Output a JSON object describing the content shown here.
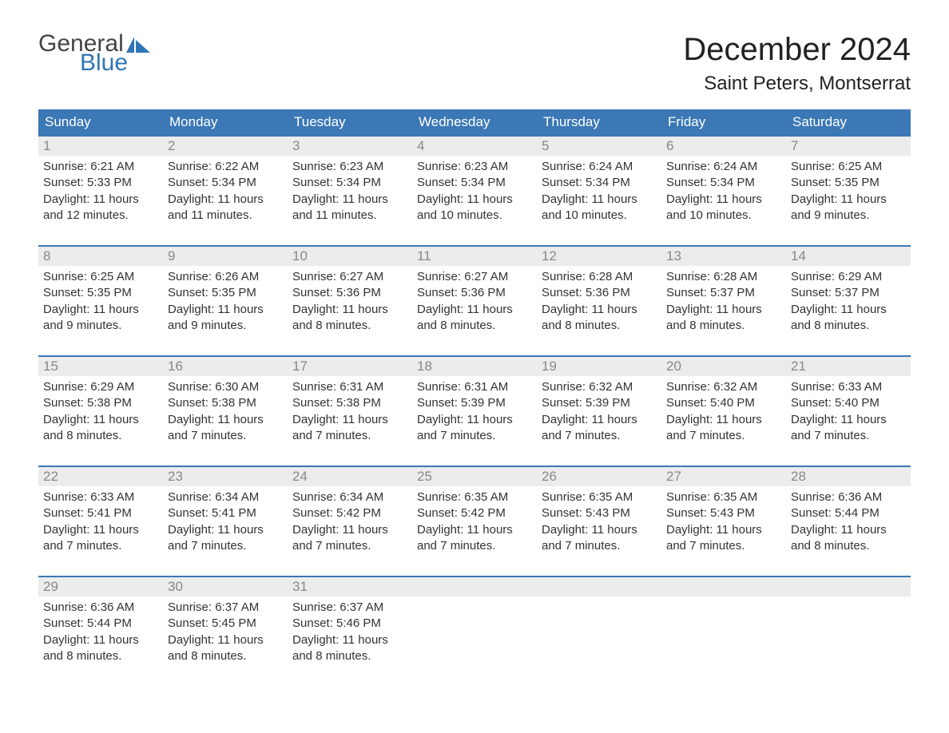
{
  "logo": {
    "general": "General",
    "blue": "Blue",
    "icon_color": "#2f75b5"
  },
  "title": "December 2024",
  "location": "Saint Peters, Montserrat",
  "colors": {
    "header_bg": "#3b78b5",
    "header_text": "#ffffff",
    "daynum_bg": "#ececec",
    "daynum_text": "#888888",
    "body_text": "#333333",
    "rule": "#3b78b5"
  },
  "weekdays": [
    "Sunday",
    "Monday",
    "Tuesday",
    "Wednesday",
    "Thursday",
    "Friday",
    "Saturday"
  ],
  "weeks": [
    [
      {
        "n": "1",
        "sunrise": "Sunrise: 6:21 AM",
        "sunset": "Sunset: 5:33 PM",
        "day1": "Daylight: 11 hours",
        "day2": "and 12 minutes."
      },
      {
        "n": "2",
        "sunrise": "Sunrise: 6:22 AM",
        "sunset": "Sunset: 5:34 PM",
        "day1": "Daylight: 11 hours",
        "day2": "and 11 minutes."
      },
      {
        "n": "3",
        "sunrise": "Sunrise: 6:23 AM",
        "sunset": "Sunset: 5:34 PM",
        "day1": "Daylight: 11 hours",
        "day2": "and 11 minutes."
      },
      {
        "n": "4",
        "sunrise": "Sunrise: 6:23 AM",
        "sunset": "Sunset: 5:34 PM",
        "day1": "Daylight: 11 hours",
        "day2": "and 10 minutes."
      },
      {
        "n": "5",
        "sunrise": "Sunrise: 6:24 AM",
        "sunset": "Sunset: 5:34 PM",
        "day1": "Daylight: 11 hours",
        "day2": "and 10 minutes."
      },
      {
        "n": "6",
        "sunrise": "Sunrise: 6:24 AM",
        "sunset": "Sunset: 5:34 PM",
        "day1": "Daylight: 11 hours",
        "day2": "and 10 minutes."
      },
      {
        "n": "7",
        "sunrise": "Sunrise: 6:25 AM",
        "sunset": "Sunset: 5:35 PM",
        "day1": "Daylight: 11 hours",
        "day2": "and 9 minutes."
      }
    ],
    [
      {
        "n": "8",
        "sunrise": "Sunrise: 6:25 AM",
        "sunset": "Sunset: 5:35 PM",
        "day1": "Daylight: 11 hours",
        "day2": "and 9 minutes."
      },
      {
        "n": "9",
        "sunrise": "Sunrise: 6:26 AM",
        "sunset": "Sunset: 5:35 PM",
        "day1": "Daylight: 11 hours",
        "day2": "and 9 minutes."
      },
      {
        "n": "10",
        "sunrise": "Sunrise: 6:27 AM",
        "sunset": "Sunset: 5:36 PM",
        "day1": "Daylight: 11 hours",
        "day2": "and 8 minutes."
      },
      {
        "n": "11",
        "sunrise": "Sunrise: 6:27 AM",
        "sunset": "Sunset: 5:36 PM",
        "day1": "Daylight: 11 hours",
        "day2": "and 8 minutes."
      },
      {
        "n": "12",
        "sunrise": "Sunrise: 6:28 AM",
        "sunset": "Sunset: 5:36 PM",
        "day1": "Daylight: 11 hours",
        "day2": "and 8 minutes."
      },
      {
        "n": "13",
        "sunrise": "Sunrise: 6:28 AM",
        "sunset": "Sunset: 5:37 PM",
        "day1": "Daylight: 11 hours",
        "day2": "and 8 minutes."
      },
      {
        "n": "14",
        "sunrise": "Sunrise: 6:29 AM",
        "sunset": "Sunset: 5:37 PM",
        "day1": "Daylight: 11 hours",
        "day2": "and 8 minutes."
      }
    ],
    [
      {
        "n": "15",
        "sunrise": "Sunrise: 6:29 AM",
        "sunset": "Sunset: 5:38 PM",
        "day1": "Daylight: 11 hours",
        "day2": "and 8 minutes."
      },
      {
        "n": "16",
        "sunrise": "Sunrise: 6:30 AM",
        "sunset": "Sunset: 5:38 PM",
        "day1": "Daylight: 11 hours",
        "day2": "and 7 minutes."
      },
      {
        "n": "17",
        "sunrise": "Sunrise: 6:31 AM",
        "sunset": "Sunset: 5:38 PM",
        "day1": "Daylight: 11 hours",
        "day2": "and 7 minutes."
      },
      {
        "n": "18",
        "sunrise": "Sunrise: 6:31 AM",
        "sunset": "Sunset: 5:39 PM",
        "day1": "Daylight: 11 hours",
        "day2": "and 7 minutes."
      },
      {
        "n": "19",
        "sunrise": "Sunrise: 6:32 AM",
        "sunset": "Sunset: 5:39 PM",
        "day1": "Daylight: 11 hours",
        "day2": "and 7 minutes."
      },
      {
        "n": "20",
        "sunrise": "Sunrise: 6:32 AM",
        "sunset": "Sunset: 5:40 PM",
        "day1": "Daylight: 11 hours",
        "day2": "and 7 minutes."
      },
      {
        "n": "21",
        "sunrise": "Sunrise: 6:33 AM",
        "sunset": "Sunset: 5:40 PM",
        "day1": "Daylight: 11 hours",
        "day2": "and 7 minutes."
      }
    ],
    [
      {
        "n": "22",
        "sunrise": "Sunrise: 6:33 AM",
        "sunset": "Sunset: 5:41 PM",
        "day1": "Daylight: 11 hours",
        "day2": "and 7 minutes."
      },
      {
        "n": "23",
        "sunrise": "Sunrise: 6:34 AM",
        "sunset": "Sunset: 5:41 PM",
        "day1": "Daylight: 11 hours",
        "day2": "and 7 minutes."
      },
      {
        "n": "24",
        "sunrise": "Sunrise: 6:34 AM",
        "sunset": "Sunset: 5:42 PM",
        "day1": "Daylight: 11 hours",
        "day2": "and 7 minutes."
      },
      {
        "n": "25",
        "sunrise": "Sunrise: 6:35 AM",
        "sunset": "Sunset: 5:42 PM",
        "day1": "Daylight: 11 hours",
        "day2": "and 7 minutes."
      },
      {
        "n": "26",
        "sunrise": "Sunrise: 6:35 AM",
        "sunset": "Sunset: 5:43 PM",
        "day1": "Daylight: 11 hours",
        "day2": "and 7 minutes."
      },
      {
        "n": "27",
        "sunrise": "Sunrise: 6:35 AM",
        "sunset": "Sunset: 5:43 PM",
        "day1": "Daylight: 11 hours",
        "day2": "and 7 minutes."
      },
      {
        "n": "28",
        "sunrise": "Sunrise: 6:36 AM",
        "sunset": "Sunset: 5:44 PM",
        "day1": "Daylight: 11 hours",
        "day2": "and 8 minutes."
      }
    ],
    [
      {
        "n": "29",
        "sunrise": "Sunrise: 6:36 AM",
        "sunset": "Sunset: 5:44 PM",
        "day1": "Daylight: 11 hours",
        "day2": "and 8 minutes."
      },
      {
        "n": "30",
        "sunrise": "Sunrise: 6:37 AM",
        "sunset": "Sunset: 5:45 PM",
        "day1": "Daylight: 11 hours",
        "day2": "and 8 minutes."
      },
      {
        "n": "31",
        "sunrise": "Sunrise: 6:37 AM",
        "sunset": "Sunset: 5:46 PM",
        "day1": "Daylight: 11 hours",
        "day2": "and 8 minutes."
      },
      null,
      null,
      null,
      null
    ]
  ]
}
